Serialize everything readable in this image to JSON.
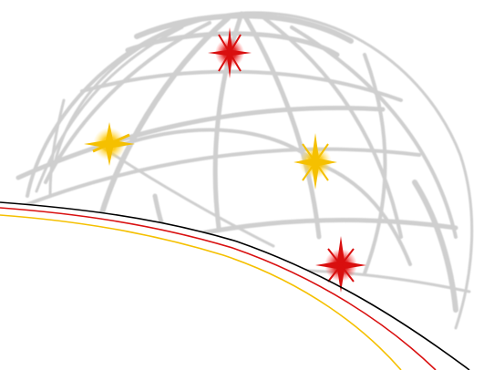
{
  "image": {
    "subject": "globe-with-star-bursts",
    "colors": {
      "background": "#ffffff",
      "meridian": "#cccccc",
      "star_red": "#d90f0f",
      "star_yellow": "#f5c000",
      "curve_black": "#000000",
      "curve_red": "#d90f0f",
      "curve_yellow": "#f5c000"
    },
    "stars": [
      {
        "name": "star-top-red",
        "color": "red"
      },
      {
        "name": "star-left-yellow",
        "color": "yellow"
      },
      {
        "name": "star-center-yellow",
        "color": "yellow"
      },
      {
        "name": "star-bottom-red",
        "color": "red"
      }
    ]
  }
}
